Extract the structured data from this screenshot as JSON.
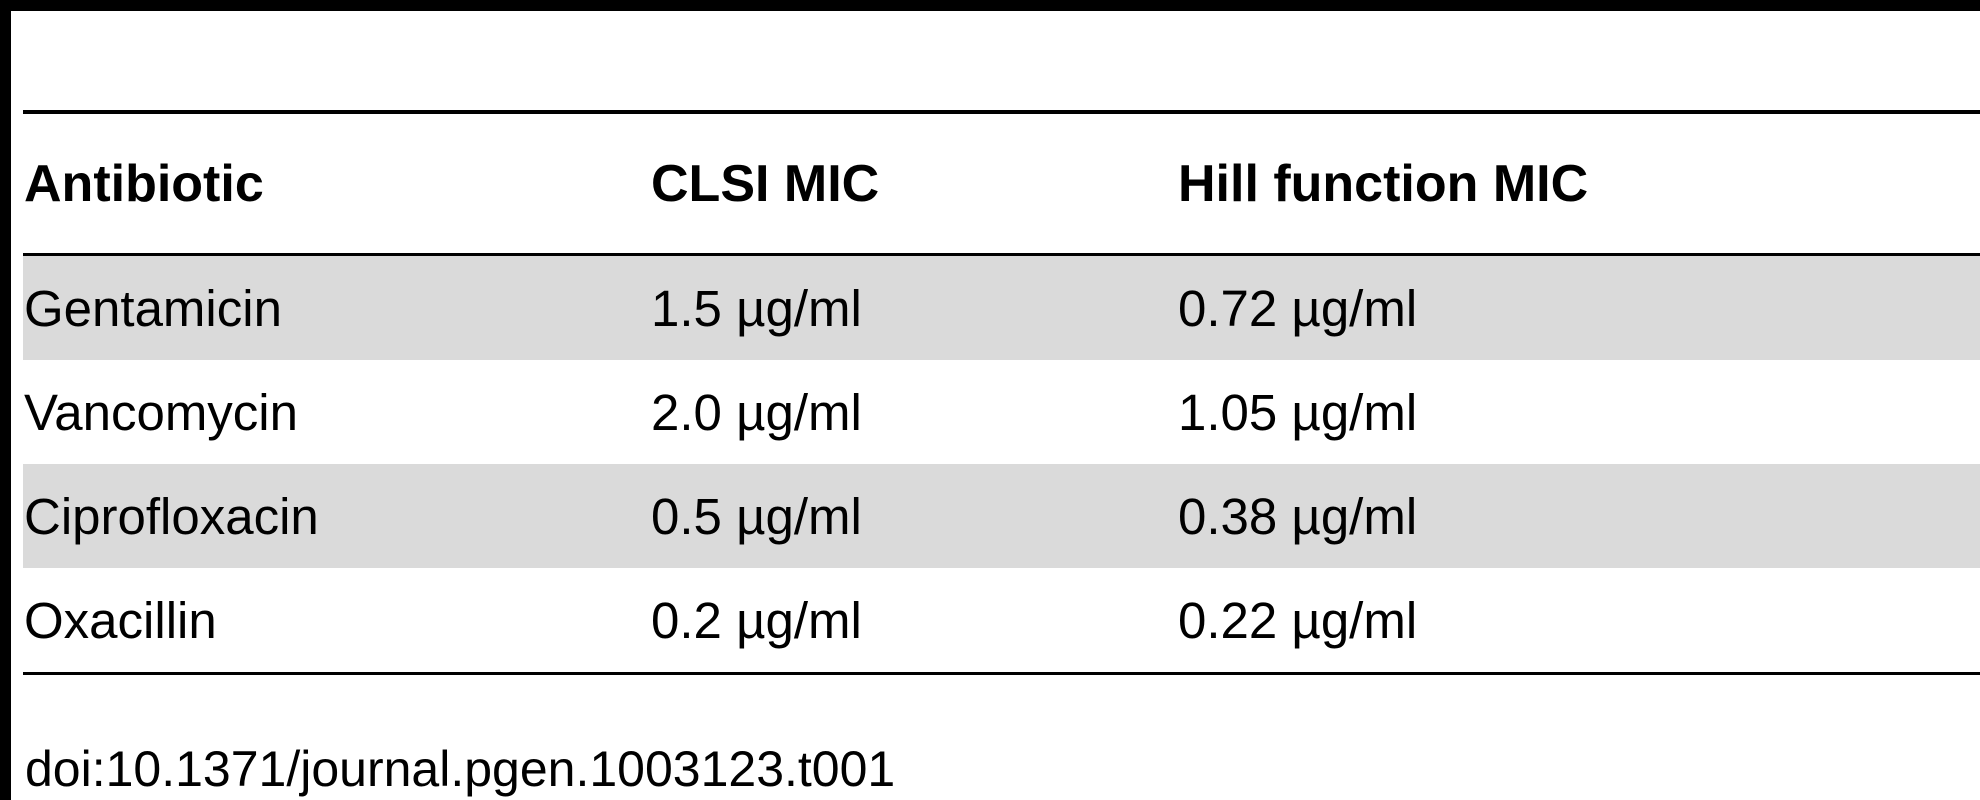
{
  "table": {
    "headers": [
      "Antibiotic",
      "CLSI MIC",
      "Hill function MIC"
    ],
    "rows": [
      {
        "antibiotic": "Gentamicin",
        "clsi_mic": "1.5 µg/ml",
        "hill_mic": "0.72 µg/ml",
        "shaded": true
      },
      {
        "antibiotic": "Vancomycin",
        "clsi_mic": "2.0 µg/ml",
        "hill_mic": "1.05 µg/ml",
        "shaded": false
      },
      {
        "antibiotic": "Ciprofloxacin",
        "clsi_mic": "0.5 µg/ml",
        "hill_mic": "0.38 µg/ml",
        "shaded": true
      },
      {
        "antibiotic": "Oxacillin",
        "clsi_mic": "0.2 µg/ml",
        "hill_mic": "0.22 µg/ml",
        "shaded": false
      }
    ]
  },
  "caption": {
    "doi": "doi:10.1371/journal.pgen.1003123.t001"
  },
  "colors": {
    "rule": "#000000",
    "row_shade": "#dadada",
    "background": "#ffffff"
  }
}
